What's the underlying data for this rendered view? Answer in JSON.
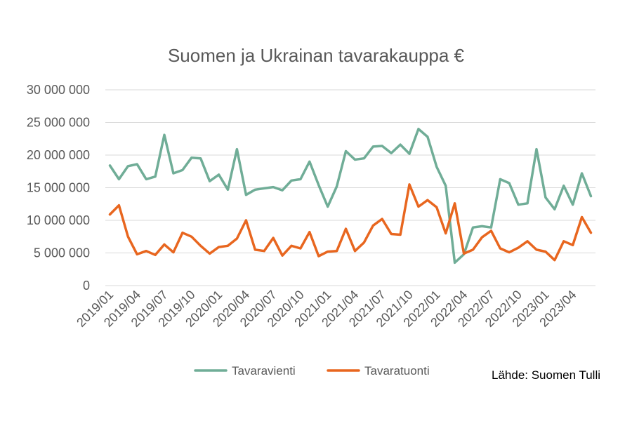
{
  "chart_data": {
    "type": "line",
    "title": "Suomen ja Ukrainan tavarakauppa €",
    "xlabel": "",
    "ylabel": "",
    "ylim": [
      0,
      30000000
    ],
    "yticks": [
      0,
      5000000,
      10000000,
      15000000,
      20000000,
      25000000,
      30000000
    ],
    "ytick_labels": [
      "0",
      "5 000 000",
      "10 000 000",
      "15 000 000",
      "20 000 000",
      "25 000 000",
      "30 000 000"
    ],
    "x": [
      "2019/01",
      "2019/02",
      "2019/03",
      "2019/04",
      "2019/05",
      "2019/06",
      "2019/07",
      "2019/08",
      "2019/09",
      "2019/10",
      "2019/11",
      "2019/12",
      "2020/01",
      "2020/02",
      "2020/03",
      "2020/04",
      "2020/05",
      "2020/06",
      "2020/07",
      "2020/08",
      "2020/09",
      "2020/10",
      "2020/11",
      "2020/12",
      "2021/01",
      "2021/02",
      "2021/03",
      "2021/04",
      "2021/05",
      "2021/06",
      "2021/07",
      "2021/08",
      "2021/09",
      "2021/10",
      "2021/11",
      "2021/12",
      "2022/01",
      "2022/02",
      "2022/03",
      "2022/04",
      "2022/05",
      "2022/06",
      "2022/07",
      "2022/08",
      "2022/09",
      "2022/10",
      "2022/11",
      "2022/12",
      "2023/01",
      "2023/02",
      "2023/03",
      "2023/04",
      "2023/05",
      "2023/06"
    ],
    "x_tick_labels": [
      "2019/01",
      "2019/04",
      "2019/07",
      "2019/10",
      "2020/01",
      "2020/04",
      "2020/07",
      "2020/10",
      "2021/01",
      "2021/04",
      "2021/07",
      "2021/10",
      "2022/01",
      "2022/04",
      "2022/07",
      "2022/10",
      "2023/01",
      "2023/04"
    ],
    "grid": true,
    "legend_position": "bottom",
    "series": [
      {
        "name": "Tavaravienti",
        "color": "#70ad97",
        "values": [
          18400000,
          16300000,
          18300000,
          18600000,
          16300000,
          16700000,
          23100000,
          17200000,
          17700000,
          19600000,
          19500000,
          16000000,
          17000000,
          14700000,
          20900000,
          13900000,
          14700000,
          14900000,
          15100000,
          14600000,
          16100000,
          16300000,
          19000000,
          15400000,
          12100000,
          15200000,
          20600000,
          19300000,
          19500000,
          21300000,
          21400000,
          20300000,
          21600000,
          20200000,
          24000000,
          22800000,
          18200000,
          15300000,
          3500000,
          4800000,
          8900000,
          9100000,
          8900000,
          16300000,
          15700000,
          12400000,
          12600000,
          20900000,
          13500000,
          11700000,
          15300000,
          12400000,
          17200000,
          13700000
        ]
      },
      {
        "name": "Tavaratuonti",
        "color": "#e8661f",
        "values": [
          10900000,
          12300000,
          7500000,
          4800000,
          5300000,
          4700000,
          6300000,
          5100000,
          8100000,
          7500000,
          6100000,
          4900000,
          5900000,
          6100000,
          7200000,
          10000000,
          5500000,
          5300000,
          7300000,
          4600000,
          6100000,
          5700000,
          8200000,
          4500000,
          5200000,
          5300000,
          8700000,
          5300000,
          6600000,
          9200000,
          10200000,
          7900000,
          7800000,
          15500000,
          12100000,
          13100000,
          12000000,
          8000000,
          12600000,
          4900000,
          5500000,
          7400000,
          8400000,
          5700000,
          5100000,
          5800000,
          6800000,
          5500000,
          5200000,
          3900000,
          6800000,
          6200000,
          10500000,
          8100000
        ]
      }
    ]
  },
  "source_note": "Lähde: Suomen Tulli"
}
